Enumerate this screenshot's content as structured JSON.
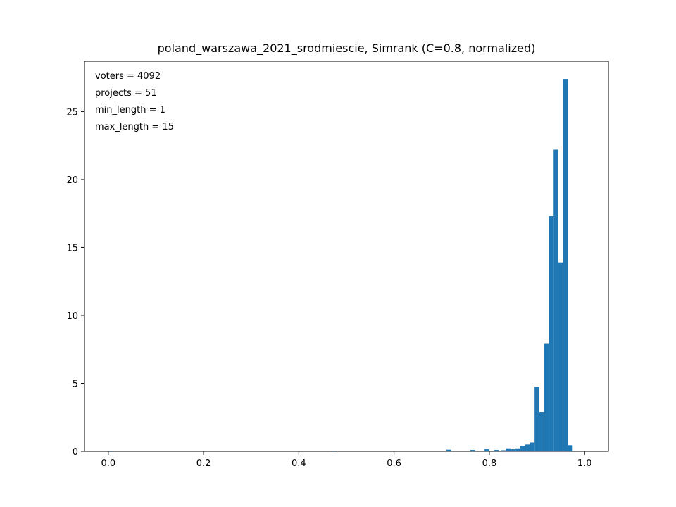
{
  "chart_data": {
    "type": "bar",
    "title": "poland_warszawa_2021_srodmiescie, Simrank (C=0.8, normalized)",
    "xlabel": "",
    "ylabel": "",
    "xlim": [
      -0.05,
      1.05
    ],
    "ylim": [
      0,
      28.7
    ],
    "grid": false,
    "color": "#1f77b4",
    "bin_width": 0.01,
    "x_ticks": [
      0.0,
      0.2,
      0.4,
      0.6,
      0.8,
      1.0
    ],
    "x_tick_labels": [
      "0.0",
      "0.2",
      "0.4",
      "0.6",
      "0.8",
      "1.0"
    ],
    "y_ticks": [
      0,
      5,
      10,
      15,
      20,
      25
    ],
    "y_tick_labels": [
      "0",
      "5",
      "10",
      "15",
      "20",
      "25"
    ],
    "annotations": [
      "voters = 4092",
      "projects = 51",
      "min_length = 1",
      "max_length = 15"
    ],
    "bins": [
      {
        "x": 0.0,
        "value": 0.05
      },
      {
        "x": 0.47,
        "value": 0.05
      },
      {
        "x": 0.71,
        "value": 0.12
      },
      {
        "x": 0.76,
        "value": 0.1
      },
      {
        "x": 0.79,
        "value": 0.15
      },
      {
        "x": 0.81,
        "value": 0.1
      },
      {
        "x": 0.825,
        "value": 0.08
      },
      {
        "x": 0.835,
        "value": 0.22
      },
      {
        "x": 0.845,
        "value": 0.15
      },
      {
        "x": 0.855,
        "value": 0.22
      },
      {
        "x": 0.865,
        "value": 0.4
      },
      {
        "x": 0.875,
        "value": 0.5
      },
      {
        "x": 0.885,
        "value": 0.65
      },
      {
        "x": 0.895,
        "value": 4.75
      },
      {
        "x": 0.905,
        "value": 2.9
      },
      {
        "x": 0.915,
        "value": 7.95
      },
      {
        "x": 0.925,
        "value": 17.3
      },
      {
        "x": 0.935,
        "value": 22.2
      },
      {
        "x": 0.945,
        "value": 13.9
      },
      {
        "x": 0.955,
        "value": 27.4
      },
      {
        "x": 0.965,
        "value": 0.45
      }
    ]
  }
}
